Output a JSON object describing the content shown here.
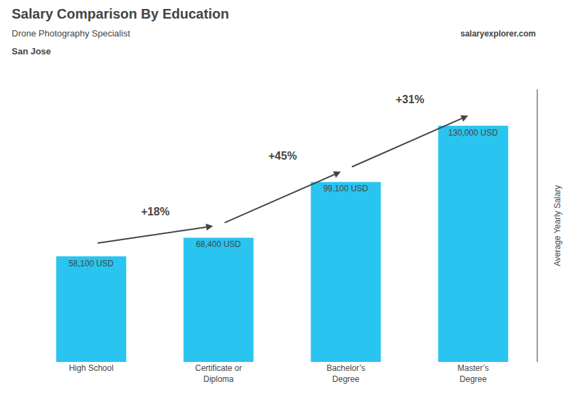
{
  "chart_data": {
    "type": "bar",
    "title": "Salary Comparison By Education",
    "subtitle": [
      "Drone Photography Specialist",
      "San Jose"
    ],
    "source": "salaryexplorer.com",
    "ylabel": "Average Yearly Salary",
    "categories": [
      "High School",
      "Certificate or\nDiploma",
      "Bachelor’s\nDegree",
      "Master’s\nDegree"
    ],
    "values": [
      58100,
      68400,
      99100,
      130000
    ],
    "value_labels": [
      "58,100 USD",
      "68,400 USD",
      "99,100 USD",
      "130,000 USD"
    ],
    "data_labels": true,
    "color": "#29C4F0",
    "annotations": [
      "+18%",
      "+45%",
      "+31%"
    ],
    "ylim": [
      0,
      150000
    ],
    "tick_labels": "x",
    "grid": false
  }
}
